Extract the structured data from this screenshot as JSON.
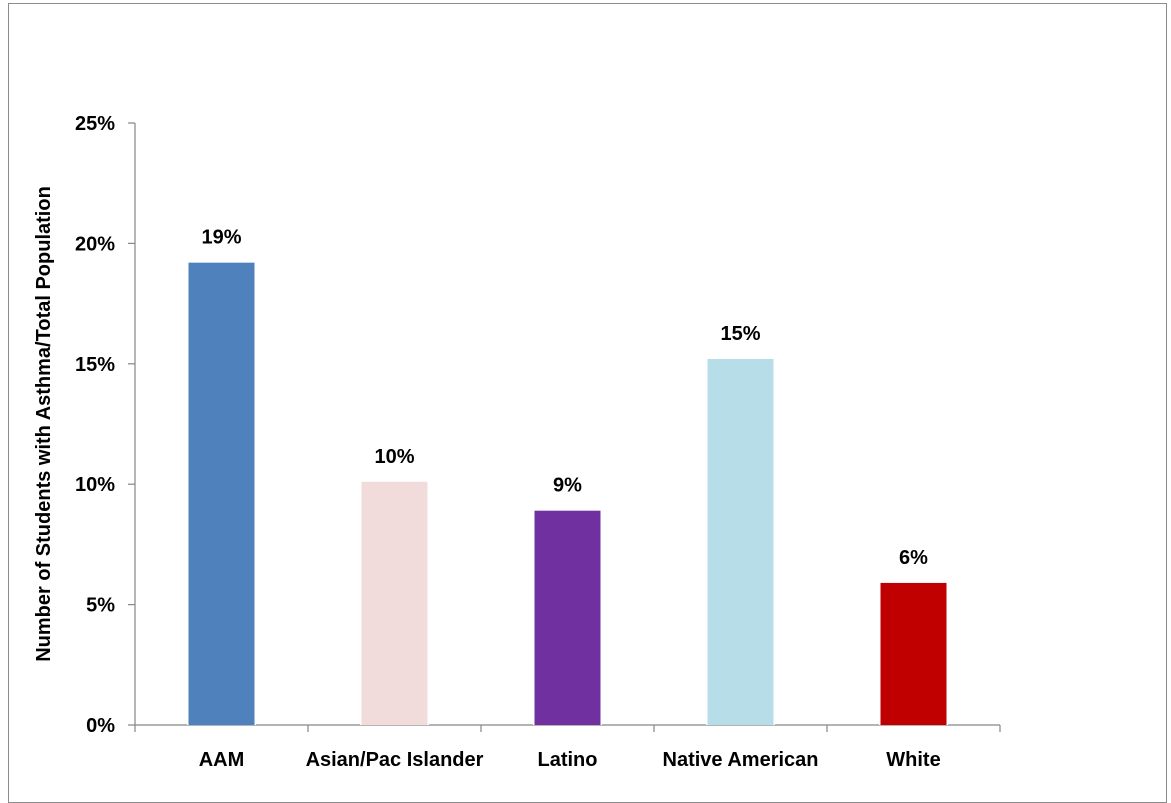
{
  "chart_data": {
    "type": "bar",
    "title": "",
    "xlabel": "",
    "ylabel": "Number of Students with Asthma/Total Population",
    "categories": [
      "AAM",
      "Asian/Pac Islander",
      "Latino",
      "Native American",
      "White"
    ],
    "values": [
      0.192,
      0.101,
      0.089,
      0.152,
      0.059
    ],
    "data_labels": [
      "19%",
      "10%",
      "9%",
      "15%",
      "6%"
    ],
    "colors": [
      "#4f81bd",
      "#f2dcdb",
      "#7030a0",
      "#b7dde8",
      "#c00000"
    ],
    "ylim": [
      0,
      0.25
    ],
    "yticks": [
      0,
      0.05,
      0.1,
      0.15,
      0.2,
      0.25
    ],
    "ytick_labels": [
      "0%",
      "5%",
      "10%",
      "15%",
      "20%",
      "25%"
    ],
    "grid": false,
    "legend": "none"
  }
}
